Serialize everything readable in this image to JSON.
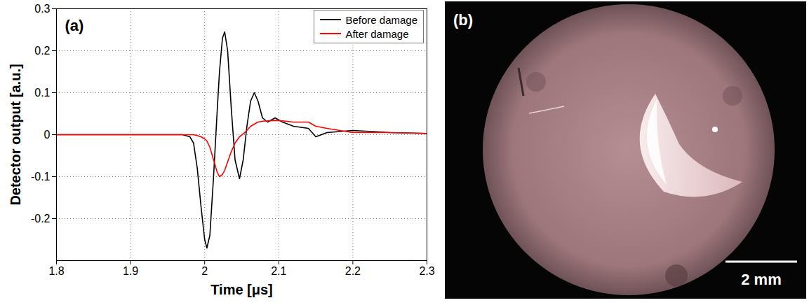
{
  "chart_data": {
    "type": "line",
    "title": "(a)",
    "x_label": "Time [μs]",
    "y_label": "Detector output [a.u.]",
    "xlim": [
      1.8,
      2.3
    ],
    "xticks": [
      1.8,
      1.9,
      2,
      2.1,
      2.2,
      2.3
    ],
    "ylim": [
      -0.3,
      0.3
    ],
    "yticks": [
      -0.2,
      -0.1,
      0,
      0.1,
      0.2,
      0.3
    ],
    "grid": true,
    "legend": "top-right",
    "x": [
      1.8,
      1.9,
      1.95,
      1.97,
      1.98,
      1.985,
      1.99,
      1.995,
      2.0,
      2.003,
      2.007,
      2.012,
      2.017,
      2.02,
      2.024,
      2.027,
      2.031,
      2.036,
      2.041,
      2.047,
      2.052,
      2.057,
      2.062,
      2.067,
      2.072,
      2.078,
      2.085,
      2.095,
      2.105,
      2.12,
      2.14,
      2.15,
      2.165,
      2.2,
      2.25,
      2.3
    ],
    "series": [
      {
        "name": "Before damage",
        "color": "#000000",
        "values": [
          0,
          0,
          0,
          0,
          -0.005,
          -0.02,
          -0.08,
          -0.17,
          -0.25,
          -0.27,
          -0.24,
          -0.1,
          0.06,
          0.15,
          0.23,
          0.245,
          0.2,
          0.06,
          -0.06,
          -0.105,
          -0.06,
          0.02,
          0.08,
          0.1,
          0.08,
          0.04,
          0.03,
          0.04,
          0.03,
          0.02,
          0.015,
          -0.005,
          0.005,
          0.01,
          0.005,
          0.003
        ]
      },
      {
        "name": "After damage",
        "color": "#ff0000",
        "values": [
          0,
          0,
          0,
          0,
          0,
          0,
          -0.002,
          -0.005,
          -0.01,
          -0.015,
          -0.03,
          -0.06,
          -0.09,
          -0.1,
          -0.095,
          -0.085,
          -0.065,
          -0.04,
          -0.02,
          -0.005,
          0.002,
          0.01,
          0.02,
          0.025,
          0.03,
          0.032,
          0.033,
          0.034,
          0.033,
          0.03,
          0.03,
          0.02,
          0.015,
          0.005,
          0.005,
          0.003
        ]
      }
    ]
  },
  "image": {
    "label": "(b)",
    "scale_bar": "2 mm"
  }
}
